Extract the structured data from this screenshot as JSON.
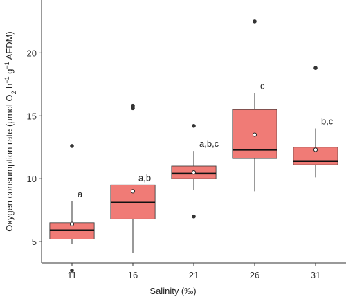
{
  "chart_data": {
    "type": "box",
    "xlabel": "Salinity (‰)",
    "ylabel_parts": {
      "a": "Oxygen consumption rate (μmol O",
      "b": "2",
      "c": " h",
      "d": "−1",
      "e": " g",
      "f": "−1",
      "g": " AFDM)"
    },
    "ylim": [
      3.3,
      24.2
    ],
    "yticks": [
      {
        "value": 5,
        "label": "5"
      },
      {
        "value": 10,
        "label": "10"
      },
      {
        "value": 15,
        "label": "15"
      },
      {
        "value": 20,
        "label": "20"
      }
    ],
    "grid": false,
    "box_fill": "#f07b76",
    "box_stroke": "#333333",
    "groups": [
      {
        "label": "11",
        "whisker_low": 4.8,
        "q1": 5.2,
        "median": 5.9,
        "q3": 6.5,
        "whisker_high": 8.2,
        "mean": 6.4,
        "outliers": [
          12.6,
          2.7
        ],
        "letters": "a"
      },
      {
        "label": "16",
        "whisker_low": 4.1,
        "q1": 6.8,
        "median": 8.1,
        "q3": 9.5,
        "whisker_high": 9.5,
        "mean": 9.0,
        "outliers": [
          15.8,
          15.6
        ],
        "letters": "a,b"
      },
      {
        "label": "21",
        "whisker_low": 9.1,
        "q1": 10.0,
        "median": 10.4,
        "q3": 11.0,
        "whisker_high": 12.2,
        "mean": 10.5,
        "outliers": [
          14.2,
          7.0
        ],
        "letters": "a,b,c"
      },
      {
        "label": "26",
        "whisker_low": 9.0,
        "q1": 11.6,
        "median": 12.3,
        "q3": 15.5,
        "whisker_high": 16.8,
        "mean": 13.5,
        "outliers": [
          22.5
        ],
        "letters": "c"
      },
      {
        "label": "31",
        "whisker_low": 10.1,
        "q1": 11.1,
        "median": 11.4,
        "q3": 12.5,
        "whisker_high": 14.0,
        "mean": 12.3,
        "outliers": [
          18.8
        ],
        "letters": "b,c"
      }
    ]
  }
}
